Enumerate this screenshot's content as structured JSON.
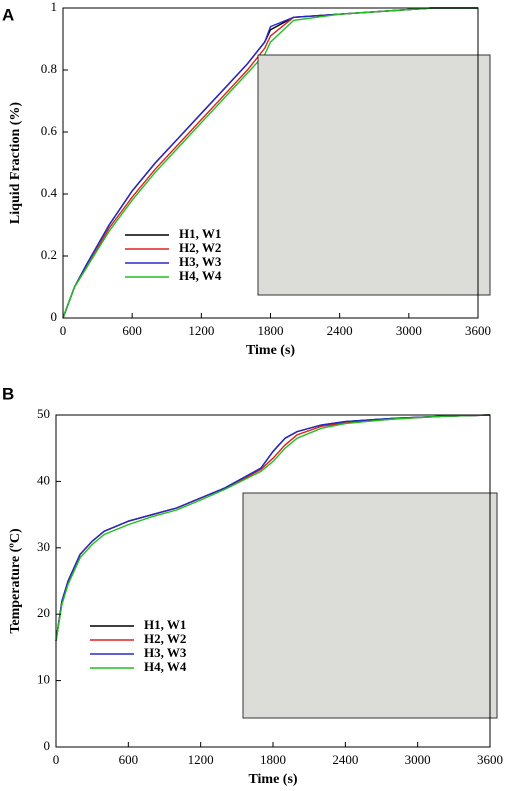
{
  "chart_data": [
    {
      "type": "line",
      "panel": "A",
      "xlabel": "Time (s)",
      "ylabel": "Liquid Fraction (%)",
      "xlim": [
        0,
        3600
      ],
      "xticks": [
        0,
        600,
        1200,
        1800,
        2400,
        3000,
        3600
      ],
      "ylim": [
        0,
        1
      ],
      "yticks": [
        0,
        0.2,
        0.4,
        0.6,
        0.8,
        1
      ],
      "x": [
        0,
        100,
        200,
        400,
        600,
        800,
        1000,
        1200,
        1400,
        1600,
        1750,
        1800,
        2000,
        2400,
        2800,
        3200,
        3600
      ],
      "series": [
        {
          "name": "H1, W1",
          "color": "#000000",
          "values": [
            0,
            0.1,
            0.17,
            0.3,
            0.41,
            0.5,
            0.58,
            0.66,
            0.74,
            0.82,
            0.89,
            0.93,
            0.97,
            0.98,
            0.99,
            1,
            1
          ]
        },
        {
          "name": "H2, W2",
          "color": "#e02020",
          "values": [
            0,
            0.1,
            0.16,
            0.29,
            0.39,
            0.48,
            0.56,
            0.64,
            0.72,
            0.8,
            0.87,
            0.91,
            0.97,
            0.98,
            0.99,
            1,
            1
          ]
        },
        {
          "name": "H3, W3",
          "color": "#2828c8",
          "values": [
            0,
            0.1,
            0.17,
            0.3,
            0.41,
            0.5,
            0.58,
            0.66,
            0.74,
            0.82,
            0.89,
            0.94,
            0.97,
            0.98,
            0.99,
            1,
            1
          ]
        },
        {
          "name": "H4, W4",
          "color": "#20c020",
          "values": [
            0,
            0.1,
            0.16,
            0.28,
            0.38,
            0.47,
            0.55,
            0.63,
            0.71,
            0.79,
            0.85,
            0.89,
            0.96,
            0.98,
            0.99,
            1,
            1
          ]
        }
      ]
    },
    {
      "type": "line",
      "panel": "B",
      "xlabel": "Time (s)",
      "ylabel": "Temperature (ºC)",
      "xlim": [
        0,
        3600
      ],
      "xticks": [
        0,
        600,
        1200,
        1800,
        2400,
        3000,
        3600
      ],
      "ylim": [
        0,
        50
      ],
      "yticks": [
        0,
        10,
        20,
        30,
        40,
        50
      ],
      "x": [
        0,
        50,
        100,
        200,
        300,
        400,
        600,
        800,
        1000,
        1200,
        1400,
        1600,
        1700,
        1800,
        1900,
        2000,
        2200,
        2400,
        2800,
        3200,
        3600
      ],
      "series": [
        {
          "name": "H1, W1",
          "color": "#000000",
          "values": [
            16,
            22,
            25,
            29,
            31,
            32.5,
            34,
            35,
            36,
            37.5,
            39,
            41,
            42,
            44.5,
            46.5,
            47.5,
            48.5,
            49,
            49.5,
            49.8,
            50
          ]
        },
        {
          "name": "H2, W2",
          "color": "#e02020",
          "values": [
            16,
            22,
            25,
            29,
            31,
            32.5,
            34,
            35,
            36,
            37.5,
            39,
            40.8,
            41.8,
            43.5,
            45.5,
            47,
            48.3,
            48.8,
            49.4,
            49.8,
            50
          ]
        },
        {
          "name": "H3, W3",
          "color": "#2828c8",
          "values": [
            16,
            22,
            25,
            29,
            31,
            32.5,
            34,
            35,
            36,
            37.5,
            39,
            41,
            42,
            44.5,
            46.5,
            47.5,
            48.5,
            49,
            49.5,
            49.8,
            50
          ]
        },
        {
          "name": "H4, W4",
          "color": "#20c020",
          "values": [
            16,
            21.5,
            24.5,
            28.5,
            30.5,
            32,
            33.5,
            34.7,
            35.7,
            37.2,
            38.8,
            40.6,
            41.5,
            43,
            45,
            46.5,
            48,
            48.7,
            49.4,
            49.8,
            50
          ]
        }
      ]
    }
  ]
}
